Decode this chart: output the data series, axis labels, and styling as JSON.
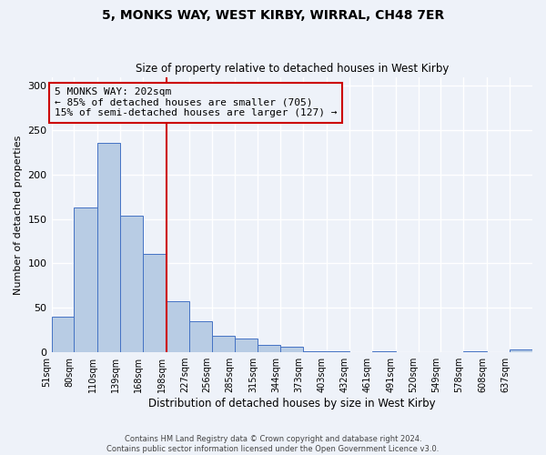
{
  "title": "5, MONKS WAY, WEST KIRBY, WIRRAL, CH48 7ER",
  "subtitle": "Size of property relative to detached houses in West Kirby",
  "xlabel": "Distribution of detached houses by size in West Kirby",
  "ylabel": "Number of detached properties",
  "bin_edges": [
    51,
    80,
    110,
    139,
    168,
    198,
    227,
    256,
    285,
    315,
    344,
    373,
    403,
    432,
    461,
    491,
    520,
    549,
    578,
    608,
    637
  ],
  "bin_labels": [
    "51sqm",
    "80sqm",
    "110sqm",
    "139sqm",
    "168sqm",
    "198sqm",
    "227sqm",
    "256sqm",
    "285sqm",
    "315sqm",
    "344sqm",
    "373sqm",
    "403sqm",
    "432sqm",
    "461sqm",
    "491sqm",
    "520sqm",
    "549sqm",
    "578sqm",
    "608sqm",
    "637sqm"
  ],
  "counts": [
    40,
    163,
    236,
    154,
    111,
    57,
    35,
    19,
    15,
    8,
    6,
    1,
    1,
    0,
    1,
    0,
    0,
    0,
    1,
    0,
    3
  ],
  "bar_color": "#b8cce4",
  "bar_edgecolor": "#4472c4",
  "vline_x": 198,
  "vline_color": "#cc0000",
  "annotation_line1": "5 MONKS WAY: 202sqm",
  "annotation_line2": "← 85% of detached houses are smaller (705)",
  "annotation_line3": "15% of semi-detached houses are larger (127) →",
  "annotation_box_edgecolor": "#cc0000",
  "ylim": [
    0,
    310
  ],
  "yticks": [
    0,
    50,
    100,
    150,
    200,
    250,
    300
  ],
  "footer1": "Contains HM Land Registry data © Crown copyright and database right 2024.",
  "footer2": "Contains public sector information licensed under the Open Government Licence v3.0.",
  "background_color": "#eef2f9",
  "grid_color": "#ffffff"
}
